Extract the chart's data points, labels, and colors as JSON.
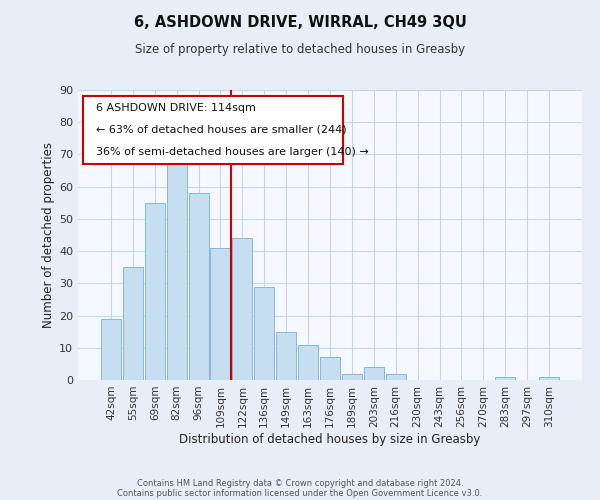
{
  "title": "6, ASHDOWN DRIVE, WIRRAL, CH49 3QU",
  "subtitle": "Size of property relative to detached houses in Greasby",
  "xlabel": "Distribution of detached houses by size in Greasby",
  "ylabel": "Number of detached properties",
  "footer_line1": "Contains HM Land Registry data © Crown copyright and database right 2024.",
  "footer_line2": "Contains public sector information licensed under the Open Government Licence v3.0.",
  "bar_labels": [
    "42sqm",
    "55sqm",
    "69sqm",
    "82sqm",
    "96sqm",
    "109sqm",
    "122sqm",
    "136sqm",
    "149sqm",
    "163sqm",
    "176sqm",
    "189sqm",
    "203sqm",
    "216sqm",
    "230sqm",
    "243sqm",
    "256sqm",
    "270sqm",
    "283sqm",
    "297sqm",
    "310sqm"
  ],
  "bar_values": [
    19,
    35,
    55,
    68,
    58,
    41,
    44,
    29,
    15,
    11,
    7,
    2,
    4,
    2,
    0,
    0,
    0,
    0,
    1,
    0,
    1
  ],
  "bar_color": "#c5dff0",
  "bar_edge_color": "#88b8d8",
  "vline_x_index": 5.5,
  "vline_color": "#cc0000",
  "ylim": [
    0,
    90
  ],
  "yticks": [
    0,
    10,
    20,
    30,
    40,
    50,
    60,
    70,
    80,
    90
  ],
  "ann_line1": "6 ASHDOWN DRIVE: 114sqm",
  "ann_line2": "← 63% of detached houses are smaller (244)",
  "ann_line3": "36% of semi-detached houses are larger (140) →",
  "bg_color": "#e8eef8",
  "plot_bg_color": "#f5f8ff",
  "grid_color": "#c8d4e8",
  "title_fontsize": 10.5,
  "subtitle_fontsize": 8.5,
  "axis_label_fontsize": 8.5,
  "tick_fontsize": 7.5,
  "ann_fontsize": 8.0,
  "footer_fontsize": 6.0
}
